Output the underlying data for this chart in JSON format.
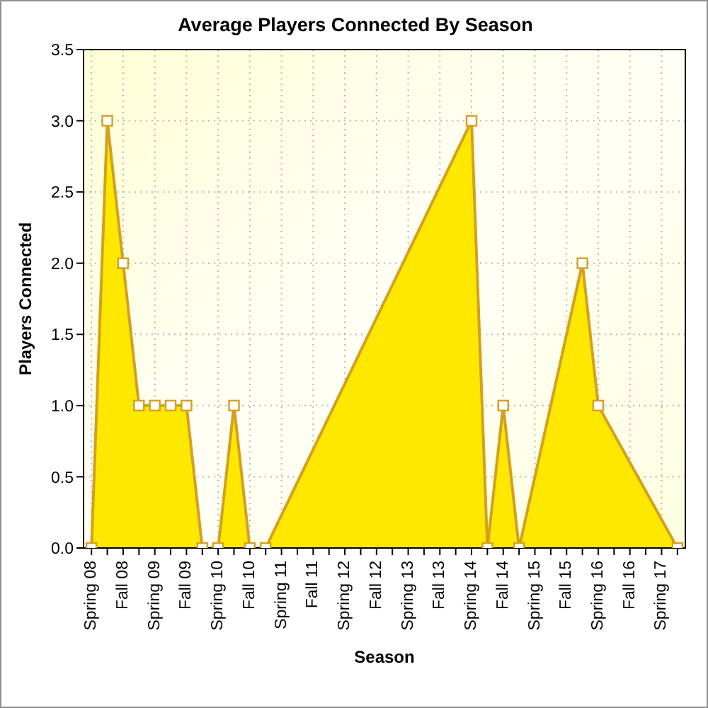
{
  "chart_data": {
    "type": "area",
    "title": "Average Players Connected By Season",
    "xlabel": "Season",
    "ylabel": "Players Connected",
    "categories": [
      "Spring 08",
      null,
      "Fall 08",
      null,
      "Spring 09",
      null,
      "Fall 09",
      null,
      "Spring 10",
      null,
      "Fall 10",
      null,
      "Spring 11",
      null,
      "Fall 11",
      null,
      "Spring 12",
      null,
      "Fall 12",
      null,
      "Spring 13",
      null,
      "Fall 13",
      null,
      "Spring 14",
      null,
      "Fall 14",
      null,
      "Spring 15",
      null,
      "Fall 15",
      null,
      "Spring 16",
      null,
      "Fall 16",
      null,
      "Spring 17",
      null
    ],
    "values": [
      0,
      3,
      2,
      1,
      1,
      1,
      1,
      0,
      0,
      1,
      0,
      0,
      null,
      null,
      null,
      null,
      null,
      null,
      null,
      null,
      null,
      null,
      null,
      null,
      3,
      0,
      1,
      0,
      null,
      null,
      null,
      2,
      1,
      null,
      null,
      null,
      null,
      0
    ],
    "color": "#ffe800",
    "ylim": [
      0,
      3.5
    ],
    "yticks": [
      {
        "value": 0,
        "label": "0.0"
      },
      0.5,
      {
        "value": 1,
        "label": "1.0"
      },
      1.5,
      {
        "value": 2,
        "label": "2.0"
      },
      2.5,
      {
        "value": 3,
        "label": "3.0"
      },
      3.5
    ],
    "grid": true,
    "marker": "square"
  }
}
